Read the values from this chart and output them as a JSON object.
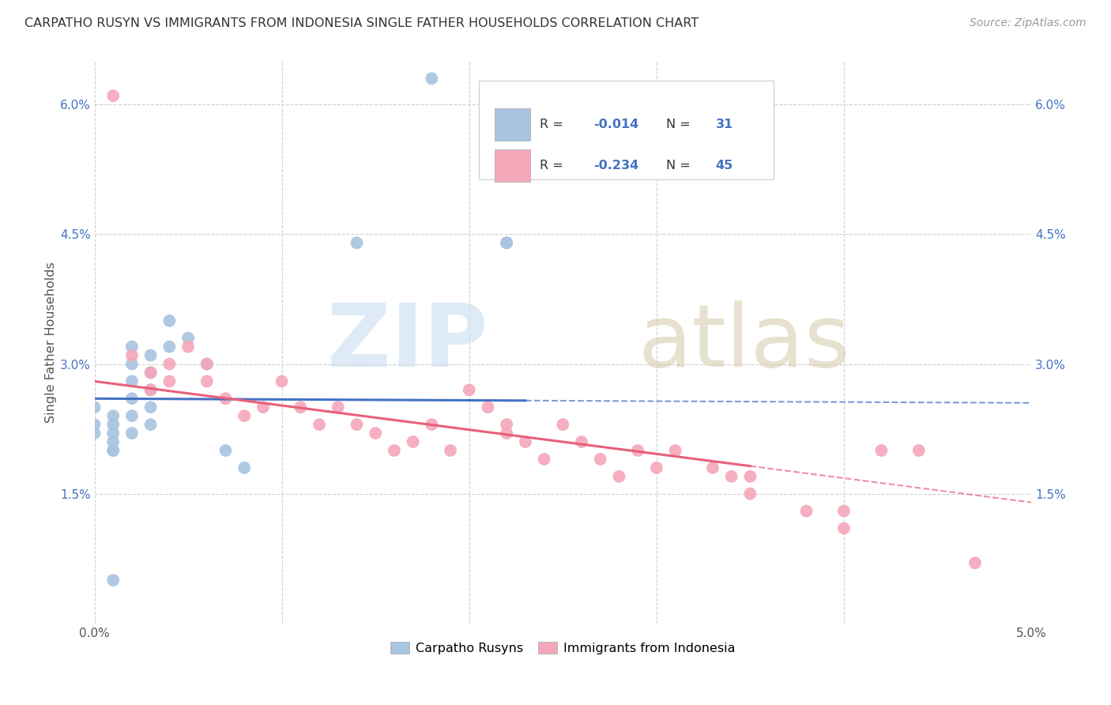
{
  "title": "CARPATHO RUSYN VS IMMIGRANTS FROM INDONESIA SINGLE FATHER HOUSEHOLDS CORRELATION CHART",
  "source": "Source: ZipAtlas.com",
  "ylabel": "Single Father Households",
  "xlim": [
    0.0,
    0.05
  ],
  "ylim": [
    0.0,
    0.065
  ],
  "xtick_positions": [
    0.0,
    0.01,
    0.02,
    0.03,
    0.04,
    0.05
  ],
  "xtick_labels": [
    "0.0%",
    "",
    "",
    "",
    "",
    "5.0%"
  ],
  "ytick_positions": [
    0.0,
    0.015,
    0.03,
    0.045,
    0.06
  ],
  "ytick_labels": [
    "",
    "1.5%",
    "3.0%",
    "4.5%",
    "6.0%"
  ],
  "legend1_label": "Carpatho Rusyns",
  "legend2_label": "Immigrants from Indonesia",
  "r1": -0.014,
  "n1": 31,
  "r2": -0.234,
  "n2": 45,
  "color_blue": "#a8c4e0",
  "color_pink": "#f4a7b9",
  "line_blue": "#4472c4",
  "line_pink": "#e8607a",
  "blue_x": [
    0.0,
    0.0,
    0.0,
    0.001,
    0.001,
    0.001,
    0.001,
    0.001,
    0.001,
    0.002,
    0.002,
    0.002,
    0.002,
    0.002,
    0.002,
    0.003,
    0.003,
    0.003,
    0.003,
    0.003,
    0.004,
    0.004,
    0.005,
    0.006,
    0.007,
    0.008,
    0.014,
    0.018,
    0.022,
    0.022,
    0.001
  ],
  "blue_y": [
    0.025,
    0.023,
    0.022,
    0.024,
    0.023,
    0.022,
    0.021,
    0.02,
    0.02,
    0.032,
    0.03,
    0.028,
    0.026,
    0.024,
    0.022,
    0.031,
    0.029,
    0.027,
    0.025,
    0.023,
    0.035,
    0.032,
    0.033,
    0.03,
    0.02,
    0.018,
    0.044,
    0.063,
    0.044,
    0.044,
    0.005
  ],
  "pink_x": [
    0.001,
    0.002,
    0.003,
    0.003,
    0.004,
    0.004,
    0.005,
    0.006,
    0.006,
    0.007,
    0.008,
    0.009,
    0.01,
    0.011,
    0.012,
    0.013,
    0.014,
    0.015,
    0.016,
    0.017,
    0.018,
    0.019,
    0.02,
    0.021,
    0.022,
    0.022,
    0.023,
    0.024,
    0.025,
    0.026,
    0.027,
    0.028,
    0.029,
    0.03,
    0.031,
    0.033,
    0.034,
    0.035,
    0.035,
    0.038,
    0.04,
    0.04,
    0.042,
    0.044,
    0.047
  ],
  "pink_y": [
    0.061,
    0.031,
    0.029,
    0.027,
    0.03,
    0.028,
    0.032,
    0.03,
    0.028,
    0.026,
    0.024,
    0.025,
    0.028,
    0.025,
    0.023,
    0.025,
    0.023,
    0.022,
    0.02,
    0.021,
    0.023,
    0.02,
    0.027,
    0.025,
    0.023,
    0.022,
    0.021,
    0.019,
    0.023,
    0.021,
    0.019,
    0.017,
    0.02,
    0.018,
    0.02,
    0.018,
    0.017,
    0.017,
    0.015,
    0.013,
    0.013,
    0.011,
    0.02,
    0.02,
    0.007
  ]
}
